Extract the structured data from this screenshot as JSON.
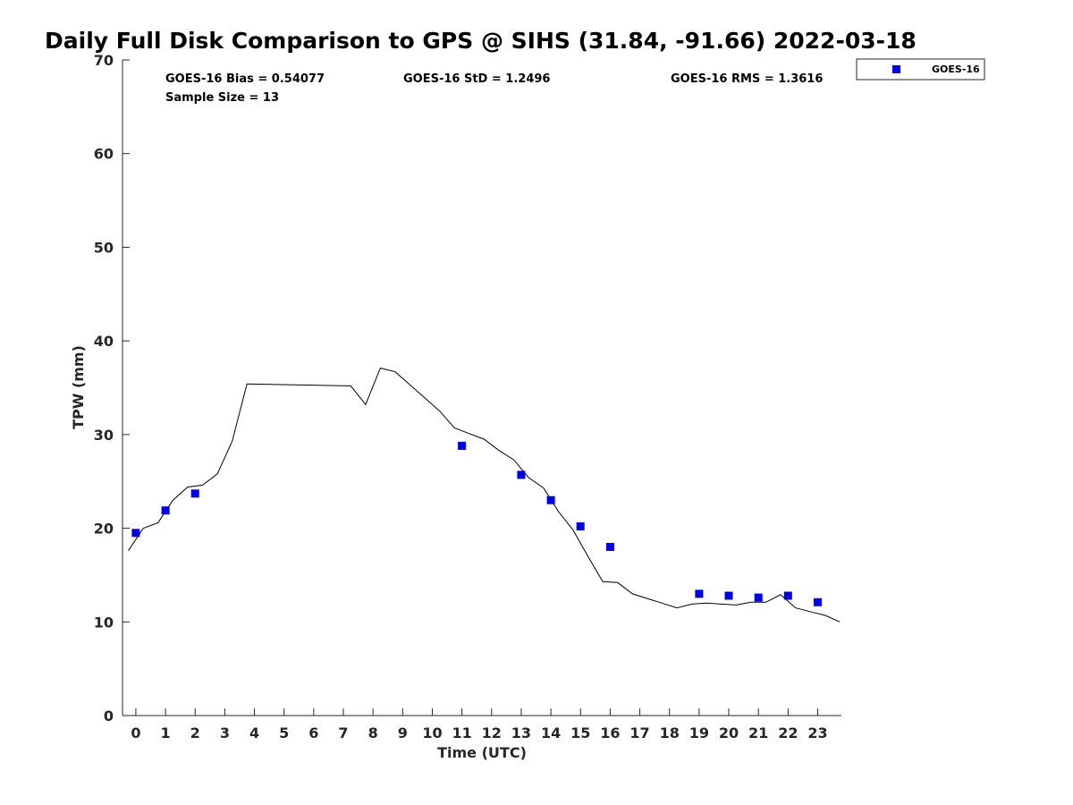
{
  "chart_data": {
    "type": "scatter",
    "title": "Daily Full Disk Comparison to GPS @ SIHS (31.84, -91.66) 2022-03-18",
    "xlabel": "Time (UTC)",
    "ylabel": "TPW (mm)",
    "xlim": [
      -0.45,
      23.8
    ],
    "ylim": [
      0,
      70
    ],
    "x_ticks": [
      0,
      1,
      2,
      3,
      4,
      5,
      6,
      7,
      8,
      9,
      10,
      11,
      12,
      13,
      14,
      15,
      16,
      17,
      18,
      19,
      20,
      21,
      22,
      23
    ],
    "y_ticks": [
      0,
      10,
      20,
      30,
      40,
      50,
      60,
      70
    ],
    "grid": false,
    "legend_position": "top-right",
    "stats": {
      "bias": "GOES-16 Bias = 0.54077",
      "std": "GOES-16 StD = 1.2496",
      "rms": "GOES-16 RMS = 1.3616",
      "sample_size": "Sample Size = 13"
    },
    "series": [
      {
        "name": "GOES-16",
        "kind": "scatter",
        "color": "#0000dd",
        "x": [
          0,
          1,
          2,
          11,
          13,
          14,
          15,
          16,
          19,
          20,
          21,
          22,
          23
        ],
        "y": [
          19.5,
          21.9,
          23.7,
          28.8,
          25.7,
          23.0,
          20.2,
          18.0,
          13.0,
          12.8,
          12.6,
          12.8,
          12.1
        ]
      },
      {
        "kind": "line",
        "color": "#000000",
        "x": [
          -0.25,
          0.25,
          0.75,
          1.25,
          1.75,
          2.25,
          2.75,
          3.25,
          3.75,
          7.25,
          7.75,
          8.25,
          8.75,
          9.25,
          9.75,
          10.25,
          10.75,
          11.25,
          11.75,
          12.25,
          12.75,
          13.25,
          13.75,
          14.25,
          14.75,
          15.25,
          15.75,
          16.25,
          16.75,
          17.25,
          17.75,
          18.25,
          18.75,
          19.25,
          19.75,
          20.25,
          20.75,
          21.25,
          21.75,
          22.25,
          22.75,
          23.25,
          23.75
        ],
        "y": [
          17.6,
          20.0,
          20.6,
          23.0,
          24.4,
          24.6,
          25.8,
          29.3,
          35.4,
          35.2,
          33.2,
          37.1,
          36.7,
          35.3,
          33.9,
          32.5,
          30.7,
          30.1,
          29.5,
          28.3,
          27.3,
          25.4,
          24.3,
          21.8,
          19.8,
          17.0,
          14.3,
          14.2,
          13.0,
          12.5,
          12.0,
          11.5,
          11.9,
          12.0,
          11.9,
          11.8,
          12.1,
          12.1,
          12.9,
          11.5,
          11.1,
          10.7,
          10.0
        ]
      }
    ]
  }
}
